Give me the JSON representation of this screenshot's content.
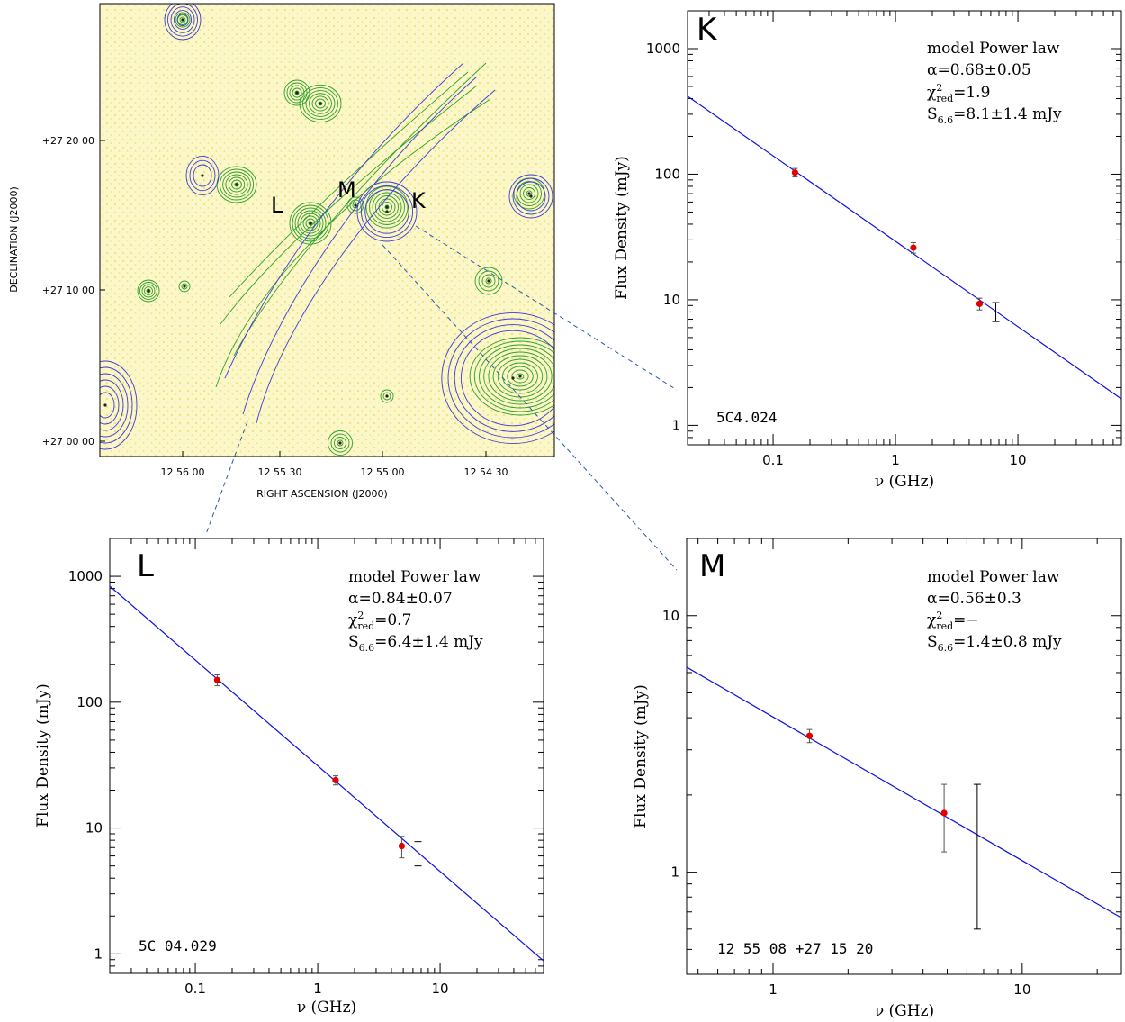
{
  "map": {
    "xlabel": "RIGHT ASCENSION (J2000)",
    "ylabel": "DECLINATION (J2000)",
    "ra_ticks": [
      "12 56 00",
      "12 55 30",
      "12 55 00",
      "12 54 30"
    ],
    "dec_ticks": [
      "+27 20 00",
      "+27 10 00",
      "+27 00 00"
    ],
    "source_labels": [
      "L",
      "M",
      "K"
    ],
    "colors": {
      "background": "#fbf7c8",
      "speckle": "#efe27a",
      "contour_green": "#2ca02c",
      "contour_blue": "#3b3bd6",
      "leader": "#2a5aa8"
    }
  },
  "chart_data": [
    {
      "type": "scatter",
      "panel": "K",
      "title": "",
      "xlabel": "ν (GHz)",
      "ylabel": "Flux Density (mJy)",
      "xscale": "log",
      "yscale": "log",
      "xlim": [
        0.02,
        70
      ],
      "ylim": [
        0.7,
        2000
      ],
      "xticks": [
        {
          "v": 0.1,
          "label": "0.1"
        },
        {
          "v": 1,
          "label": "1"
        },
        {
          "v": 10,
          "label": "10"
        }
      ],
      "yticks": [
        {
          "v": 1,
          "label": "1"
        },
        {
          "v": 10,
          "label": "10"
        },
        {
          "v": 100,
          "label": "100"
        },
        {
          "v": 1000,
          "label": "1000"
        }
      ],
      "model": {
        "name": "model Power law",
        "alpha": "α=0.68±0.05",
        "chi_main": "χ",
        "chi_sup": "2",
        "chi_sub": "red",
        "chi_val": "=1.9",
        "s_main": "S",
        "s_sub": "6.6",
        "s_val": "=8.1±1.4 mJy"
      },
      "source_name": "5C4.024",
      "points": [
        {
          "x": 0.151,
          "y": 103,
          "err": 8
        },
        {
          "x": 1.4,
          "y": 26,
          "err": 2.5
        },
        {
          "x": 4.86,
          "y": 9.3,
          "err": 1.0
        }
      ],
      "predicted": {
        "x": 6.6,
        "y": 8.1,
        "lo": 6.7,
        "hi": 9.5
      },
      "fit": {
        "x0": 6.6,
        "y0": 8.1,
        "alpha": 0.68
      },
      "legend": "top-right",
      "grid": false
    },
    {
      "type": "scatter",
      "panel": "L",
      "title": "",
      "xlabel": "ν (GHz)",
      "ylabel": "Flux Density (mJy)",
      "xscale": "log",
      "yscale": "log",
      "xlim": [
        0.02,
        70
      ],
      "ylim": [
        0.7,
        2000
      ],
      "xticks": [
        {
          "v": 0.1,
          "label": "0.1"
        },
        {
          "v": 1,
          "label": "1"
        },
        {
          "v": 10,
          "label": "10"
        }
      ],
      "yticks": [
        {
          "v": 1,
          "label": "1"
        },
        {
          "v": 10,
          "label": "10"
        },
        {
          "v": 100,
          "label": "100"
        },
        {
          "v": 1000,
          "label": "1000"
        }
      ],
      "model": {
        "name": "model Power law",
        "alpha": "α=0.84±0.07",
        "chi_main": "χ",
        "chi_sup": "2",
        "chi_sub": "red",
        "chi_val": "=0.7",
        "s_main": "S",
        "s_sub": "6.6",
        "s_val": "=6.4±1.4 mJy"
      },
      "source_name": "5C 04.029",
      "points": [
        {
          "x": 0.151,
          "y": 150,
          "err": 15
        },
        {
          "x": 1.4,
          "y": 24,
          "err": 2
        },
        {
          "x": 4.86,
          "y": 7.2,
          "err": 1.4
        }
      ],
      "predicted": {
        "x": 6.6,
        "y": 6.4,
        "lo": 5.0,
        "hi": 7.8
      },
      "fit": {
        "x0": 6.6,
        "y0": 6.4,
        "alpha": 0.84
      },
      "legend": "top-right",
      "grid": false
    },
    {
      "type": "scatter",
      "panel": "M",
      "title": "",
      "xlabel": "ν (GHz)",
      "ylabel": "Flux Density (mJy)",
      "xscale": "log",
      "yscale": "log",
      "xlim": [
        0.45,
        25
      ],
      "ylim": [
        0.4,
        20
      ],
      "xticks": [
        {
          "v": 1,
          "label": "1"
        },
        {
          "v": 10,
          "label": "10"
        }
      ],
      "yticks": [
        {
          "v": 1,
          "label": "1"
        },
        {
          "v": 10,
          "label": "10"
        }
      ],
      "model": {
        "name": "model Power law",
        "alpha": "α=0.56±0.3",
        "chi_main": "χ",
        "chi_sup": "2",
        "chi_sub": "red",
        "chi_val": "=−",
        "s_main": "S",
        "s_sub": "6.6",
        "s_val": "=1.4±0.8 mJy"
      },
      "source_name": "12 55 08 +27 15 20",
      "points": [
        {
          "x": 1.4,
          "y": 3.4,
          "err": 0.2
        },
        {
          "x": 4.86,
          "y": 1.7,
          "err": 0.5
        }
      ],
      "predicted": {
        "x": 6.6,
        "y": 1.4,
        "lo": 0.6,
        "hi": 2.2
      },
      "fit": {
        "x0": 6.6,
        "y0": 1.4,
        "alpha": 0.56
      },
      "legend": "top-right",
      "grid": false
    }
  ]
}
